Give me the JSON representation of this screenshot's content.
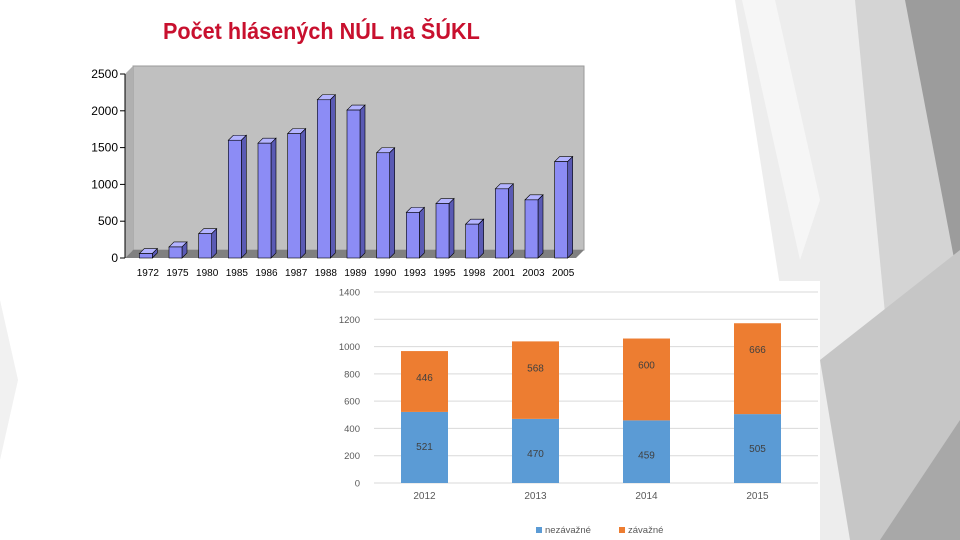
{
  "slide": {
    "title": "Počet hlásených NÚL na ŠÚKL"
  },
  "colors": {
    "title": "#c8102e",
    "bar3d_front": "#8c8cf5",
    "bar3d_top": "#b4b4ff",
    "bar3d_side": "#5a5ab4",
    "wall": "#c0c0c0",
    "floor": "#808080",
    "nezavazne": "#5b9bd5",
    "zavazne": "#ed7d31",
    "bg_shape_light": "#ececec",
    "bg_shape_mid": "#cfcfcf",
    "bg_shape_dark": "#9a9a9a"
  },
  "chart_data": [
    {
      "type": "bar",
      "style": "3d-column",
      "title": "Počet hlásených NÚL na ŠÚKL",
      "categories": [
        "1972",
        "1975",
        "1980",
        "1985",
        "1986",
        "1987",
        "1988",
        "1989",
        "1990",
        "1993",
        "1995",
        "1998",
        "2001",
        "2003",
        "2005"
      ],
      "values": [
        60,
        150,
        330,
        1600,
        1560,
        1690,
        2150,
        2010,
        1430,
        620,
        740,
        460,
        940,
        790,
        1310
      ],
      "ylim": [
        0,
        2500
      ],
      "yticks": [
        "0",
        "500",
        "1000",
        "1500",
        "2000",
        "2500"
      ],
      "legend": "none"
    },
    {
      "type": "bar",
      "style": "stacked-column",
      "categories": [
        "2012",
        "2013",
        "2014",
        "2015"
      ],
      "series": [
        {
          "name": "nezávažné",
          "values": [
            521,
            470,
            459,
            505
          ]
        },
        {
          "name": "závažné",
          "values": [
            446,
            568,
            600,
            666
          ]
        }
      ],
      "ylim": [
        0,
        1400
      ],
      "yticks": [
        "0",
        "200",
        "400",
        "600",
        "800",
        "1000",
        "1200",
        "1400"
      ],
      "grid": true,
      "legend": "bottom"
    }
  ]
}
